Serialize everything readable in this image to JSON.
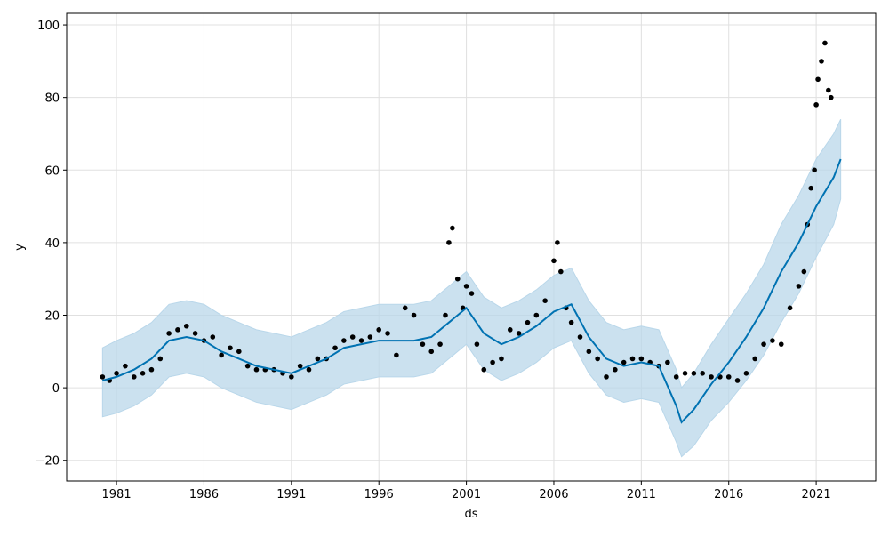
{
  "chart_data": {
    "type": "forecast",
    "x_label": "ds",
    "y_label": "y",
    "xlim": [
      1978.15,
      2024.4
    ],
    "xticks": [
      1981,
      1986,
      1991,
      1996,
      2001,
      2006,
      2011,
      2016,
      2021
    ],
    "ylim": [
      -25.7,
      103.2
    ],
    "yticks": [
      {
        "value": -20,
        "label": "−20"
      },
      0,
      20,
      40,
      60,
      80,
      100
    ],
    "grid": true,
    "observed": {
      "color": "#000000",
      "x": [
        1980.2,
        1980.6,
        1981,
        1981.5,
        1982,
        1982.5,
        1983,
        1983.5,
        1984,
        1984.5,
        1985,
        1985.5,
        1986,
        1986.5,
        1987,
        1987.5,
        1988,
        1988.5,
        1989,
        1989.5,
        1990,
        1990.5,
        1991,
        1991.5,
        1992,
        1992.5,
        1993,
        1993.5,
        1994,
        1994.5,
        1995,
        1995.5,
        1996,
        1996.5,
        1997,
        1997.5,
        1998,
        1998.5,
        1999,
        1999.5,
        1999.8,
        2000,
        2000.2,
        2000.5,
        2000.8,
        2001,
        2001.3,
        2001.6,
        2002,
        2002.5,
        2003,
        2003.5,
        2004,
        2004.5,
        2005,
        2005.5,
        2006,
        2006.2,
        2006.4,
        2006.7,
        2007,
        2007.5,
        2008,
        2008.5,
        2009,
        2009.5,
        2010,
        2010.5,
        2011,
        2011.5,
        2012,
        2012.5,
        2013,
        2013.5,
        2014,
        2014.5,
        2015,
        2015.5,
        2016,
        2016.5,
        2017,
        2017.5,
        2018,
        2018.5,
        2019,
        2019.5,
        2020,
        2020.3,
        2020.5,
        2020.7,
        2020.9,
        2021,
        2021.1,
        2021.3,
        2021.5,
        2021.7,
        2021.85
      ],
      "values": [
        3,
        2,
        4,
        6,
        3,
        4,
        5,
        8,
        15,
        16,
        17,
        15,
        13,
        14,
        9,
        11,
        10,
        6,
        5,
        5,
        5,
        4,
        3,
        6,
        5,
        8,
        8,
        11,
        13,
        14,
        13,
        14,
        16,
        15,
        9,
        22,
        20,
        12,
        10,
        12,
        20,
        40,
        44,
        30,
        22,
        28,
        26,
        12,
        5,
        7,
        8,
        16,
        15,
        18,
        20,
        24,
        35,
        40,
        32,
        22,
        18,
        14,
        10,
        8,
        3,
        5,
        7,
        8,
        8,
        7,
        6,
        7,
        3,
        4,
        4,
        4,
        3,
        3,
        3,
        2,
        4,
        8,
        12,
        13,
        12,
        22,
        28,
        32,
        45,
        55,
        60,
        78,
        85,
        90,
        95,
        82,
        80
      ]
    },
    "forecast": {
      "color": "#0072b2",
      "band_color": "#b9d7ea",
      "x": [
        1980.2,
        1981,
        1982,
        1983,
        1984,
        1985,
        1986,
        1987,
        1988,
        1989,
        1990,
        1991,
        1992,
        1993,
        1994,
        1995,
        1996,
        1997,
        1998,
        1999,
        2000,
        2001,
        2002,
        2003,
        2004,
        2005,
        2006,
        2007,
        2008,
        2009,
        2010,
        2011,
        2012,
        2013,
        2013.3,
        2014,
        2015,
        2016,
        2017,
        2018,
        2019,
        2020,
        2021,
        2022,
        2022.4
      ],
      "values": [
        2,
        3,
        5,
        8,
        13,
        14,
        13,
        10,
        8,
        6,
        5,
        4,
        6,
        8,
        11,
        12,
        13,
        13,
        13,
        14,
        18,
        22,
        15,
        12,
        14,
        17,
        21,
        23,
        14,
        8,
        6,
        7,
        6,
        -5,
        -9.5,
        -6,
        1,
        7,
        14,
        22,
        32,
        40,
        50,
        58,
        63
      ],
      "lower": [
        -8,
        -7,
        -5,
        -2,
        3,
        4,
        3,
        0,
        -2,
        -4,
        -5,
        -6,
        -4,
        -2,
        1,
        2,
        3,
        3,
        3,
        4,
        8,
        12,
        5,
        2,
        4,
        7,
        11,
        13,
        4,
        -2,
        -4,
        -3,
        -4,
        -15,
        -19,
        -16,
        -9,
        -4,
        2,
        9,
        18,
        26,
        36,
        45,
        52
      ],
      "upper": [
        11,
        13,
        15,
        18,
        23,
        24,
        23,
        20,
        18,
        16,
        15,
        14,
        16,
        18,
        21,
        22,
        23,
        23,
        23,
        24,
        28,
        32,
        25,
        22,
        24,
        27,
        31,
        33,
        24,
        18,
        16,
        17,
        16,
        5,
        0,
        4,
        12,
        19,
        26,
        34,
        45,
        53,
        63,
        70,
        74
      ]
    }
  }
}
